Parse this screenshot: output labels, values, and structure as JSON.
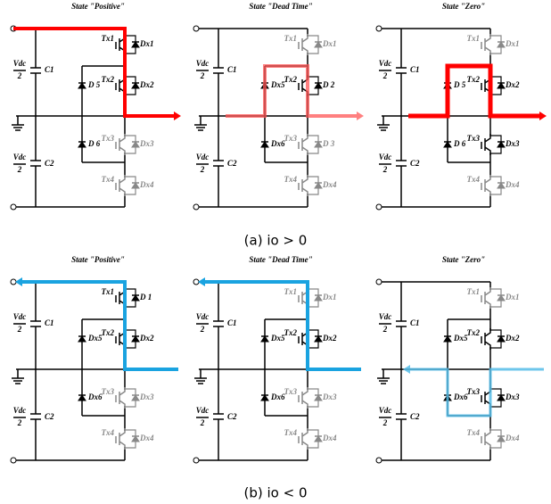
{
  "panels": [
    {
      "title": "State \"Positive\"",
      "labels": [
        "Vdc",
        "2",
        "C1",
        "Vdc",
        "2",
        "C2",
        "Tx1",
        "Dx1",
        "D 5",
        "Tx2",
        "Dx2",
        "Tx3",
        "Dx3",
        "D 6",
        "Tx4",
        "Dx4"
      ]
    },
    {
      "title": "State \"Dead Time\"",
      "labels": [
        "Vdc",
        "2",
        "C1",
        "Vdc",
        "2",
        "C2",
        "Tx1",
        "Dx1",
        "Dx5",
        "Tx2",
        "D 2",
        "Tx3",
        "D 3",
        "Dx6",
        "Tx4",
        "Dx4"
      ]
    },
    {
      "title": "State \"Zero\"",
      "labels": [
        "Vdc",
        "2",
        "C1",
        "Vdc",
        "2",
        "C2",
        "Tx1",
        "Dx1",
        "D 5",
        "Tx2",
        "Dx2",
        "Tx3",
        "Dx3",
        "D 6",
        "Tx4",
        "Dx4"
      ]
    },
    {
      "title": "State \"Positive\"",
      "labels": [
        "Vdc",
        "2",
        "C1",
        "Vdc",
        "2",
        "C2",
        "Tx1",
        "D 1",
        "Dx5",
        "Tx2",
        "Dx2",
        "Tx3",
        "Dx3",
        "Dx6",
        "Tx4",
        "Dx4"
      ]
    },
    {
      "title": "State \"Dead Time\"",
      "labels": [
        "Vdc",
        "2",
        "C1",
        "Vdc",
        "2",
        "C2",
        "Tx1",
        "Dx1",
        "Dx5",
        "Tx2",
        "Dx2",
        "Tx3",
        "Dx3",
        "Dx6",
        "Tx4",
        "Dx4"
      ]
    },
    {
      "title": "State \"Zero\"",
      "labels": [
        "Vdc",
        "2",
        "C1",
        "Vdc",
        "2",
        "C2",
        "Tx1",
        "Dx1",
        "Dx5",
        "Tx2",
        "Dx2",
        "Tx3",
        "Dx3",
        "Dx6",
        "Tx4",
        "Dx4"
      ]
    }
  ],
  "captions": [
    "(a)  io > 0",
    "(b)  io < 0"
  ]
}
